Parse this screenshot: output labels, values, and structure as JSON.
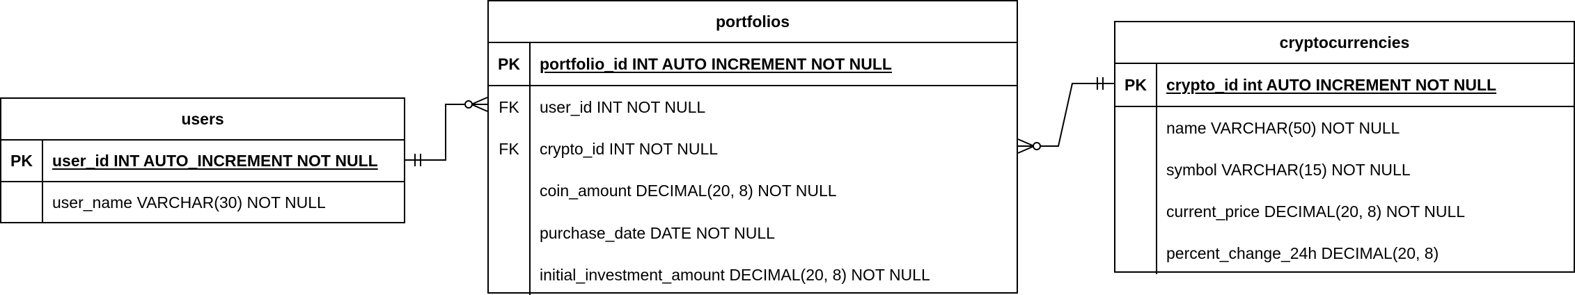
{
  "entities": {
    "users": {
      "title": "users",
      "pk": {
        "key": "PK",
        "field": "user_id INT AUTO_INCREMENT NOT NULL"
      },
      "rows": [
        {
          "key": "",
          "field": "user_name VARCHAR(30) NOT NULL"
        }
      ]
    },
    "portfolios": {
      "title": "portfolios",
      "pk": {
        "key": "PK",
        "field": "portfolio_id INT AUTO INCREMENT NOT NULL"
      },
      "rows": [
        {
          "key": "FK",
          "field": "user_id INT NOT NULL"
        },
        {
          "key": "FK",
          "field": "crypto_id INT NOT NULL"
        },
        {
          "key": "",
          "field": "coin_amount DECIMAL(20, 8) NOT NULL"
        },
        {
          "key": "",
          "field": "purchase_date DATE NOT NULL"
        },
        {
          "key": "",
          "field": "initial_investment_amount DECIMAL(20, 8) NOT NULL"
        }
      ]
    },
    "cryptocurrencies": {
      "title": "cryptocurrencies",
      "pk": {
        "key": "PK",
        "field": "crypto_id int AUTO INCREMENT NOT NULL"
      },
      "rows": [
        {
          "key": "",
          "field": "name VARCHAR(50) NOT NULL"
        },
        {
          "key": "",
          "field": "symbol VARCHAR(15) NOT NULL"
        },
        {
          "key": "",
          "field": "current_price DECIMAL(20, 8) NOT NULL"
        },
        {
          "key": "",
          "field": "percent_change_24h DECIMAL(20, 8)"
        }
      ]
    }
  },
  "relationships": [
    {
      "from": "users.user_id",
      "to": "portfolios.user_id",
      "from_cardinality": "exactly-one",
      "to_cardinality": "zero-or-many"
    },
    {
      "from": "cryptocurrencies.crypto_id",
      "to": "portfolios.crypto_id",
      "from_cardinality": "exactly-one",
      "to_cardinality": "zero-or-many"
    }
  ]
}
